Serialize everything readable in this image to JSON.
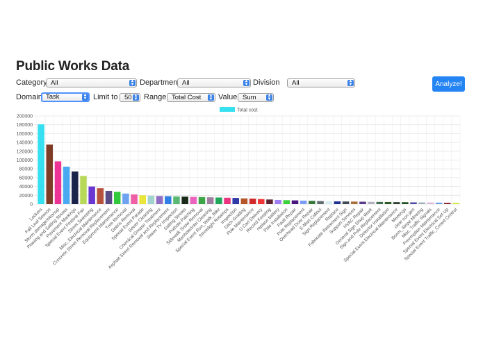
{
  "page": {
    "title": "Public Works Data"
  },
  "filters": {
    "category_label": "Category",
    "category_value": "All",
    "department_label": "Department",
    "department_value": "All",
    "division_label": "Division",
    "division_value": "All",
    "domain_label": "Domain",
    "domain_value": "Task",
    "limit_label": "Limit to",
    "limit_value": "50",
    "range_label": "Range",
    "range_value": "Total Cost",
    "value_label": "Value",
    "value_value": "Sum"
  },
  "actions": {
    "analyze_label": "Analyze!"
  },
  "chart_data": {
    "type": "bar",
    "legend": "Total cost",
    "legend_color": "#36e0f0",
    "legend_position": "top",
    "ylim": [
      0,
      200000
    ],
    "yticks": [
      0,
      20000,
      40000,
      60000,
      80000,
      100000,
      120000,
      140000,
      160000,
      180000,
      200000
    ],
    "grid": true,
    "categories": [
      "Lockers",
      "Fall Leaf Season",
      "Storm damage/cleanup",
      "Plowing and Salting Streets",
      "Pavement Markings",
      "Special Event Festival Fair",
      "Street Sweeping",
      "Misc. Electrical Maintenance",
      "Concrete Street Removal Replacement",
      "Equipment Maintenance",
      "Tree Removal",
      "Debris Removal",
      "Special Event Parade",
      "Sewer Cleaning",
      "Chemical Grease Treatment",
      "Asphalt Street Removal and Replacement",
      "Sewer TV Inspection",
      "Salting Streets",
      "Pothole Patching",
      "Sidewalk Snow Removal",
      "Manhole/Inlet Cleaning",
      "Special Event Run_Walk_Bike",
      "Streetlight Retamps",
      "Inspection",
      "Ditch Grading",
      "Pole Maintenance",
      "U Cart Delivery",
      "Record Keeping",
      "replace battery",
      "Pole Installation",
      "Fault Repair",
      "Pole Replacement",
      "Overhead Door Repair",
      "E-Mart Callout",
      "Sign Replacement",
      "Replace",
      "Fabricate Retirement Sign",
      "Support Services",
      "HVAC Repair",
      "General Sign Shop Work",
      "Sign and Pole Replacement",
      "Detector Installation",
      "Special Event Electrical Maintenance",
      "Meetings",
      "clear con jam",
      "Boom_Slope Mowing",
      "Misc. Traffic Signals",
      "Preemption Maintenance",
      "Special Event Electrical Set Up",
      "Special Event Traffic_Crowd Control"
    ],
    "values": [
      181000,
      135000,
      97000,
      85000,
      74000,
      64000,
      40000,
      36000,
      30000,
      28000,
      24000,
      22000,
      20000,
      19000,
      18500,
      18000,
      17500,
      17000,
      16500,
      16000,
      15500,
      15000,
      14500,
      14000,
      13000,
      12500,
      11500,
      10500,
      9500,
      9000,
      8500,
      8000,
      7500,
      7000,
      6500,
      6200,
      6000,
      5800,
      5500,
      5200,
      5000,
      4800,
      4500,
      4300,
      4000,
      3800,
      3600,
      3400,
      3200,
      3000
    ],
    "colors": [
      "#36e0f0",
      "#7e3c26",
      "#ee3397",
      "#4aa9f0",
      "#1a2349",
      "#b8d85a",
      "#6a36d1",
      "#b5513c",
      "#5a4a86",
      "#33c93c",
      "#6fa3f0",
      "#ee5fa5",
      "#e9e637",
      "#a2d3cc",
      "#8f6fc4",
      "#2f7fe7",
      "#58b874",
      "#1a2a1a",
      "#ea63be",
      "#3fa648",
      "#a07ea0",
      "#1fa75a",
      "#ea3480",
      "#2e3ba6",
      "#b4552a",
      "#d02a2a",
      "#ee3636",
      "#5a2432",
      "#a07ef4",
      "#3fd040",
      "#48167e",
      "#7b9ef4",
      "#37763a",
      "#606b70",
      "#d4eef0",
      "#1f2f8f",
      "#404a57",
      "#a86f3a",
      "#5a3a8a",
      "#b0b0c0",
      "#3f6f50",
      "#2f5a2a",
      "#304030",
      "#1f4f1f",
      "#4f4aa4",
      "#9fb0b8",
      "#d9b4d4",
      "#6a9fe4",
      "#8a2a3a",
      "#d2e83a"
    ]
  }
}
